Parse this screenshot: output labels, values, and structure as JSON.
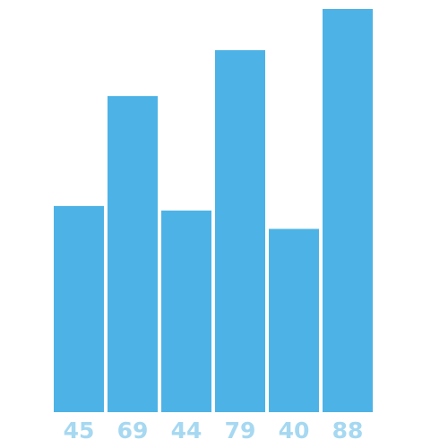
{
  "chart_data": {
    "type": "bar",
    "categories": [
      "45",
      "69",
      "44",
      "79",
      "40",
      "88"
    ],
    "values": [
      45,
      69,
      44,
      79,
      40,
      88
    ],
    "title": "",
    "xlabel": "",
    "ylabel": "",
    "ylim": [
      0,
      88
    ],
    "grid": false,
    "legend": "none"
  },
  "colors": {
    "bar": "#4DB3E6",
    "label": "#A6D8F1"
  }
}
